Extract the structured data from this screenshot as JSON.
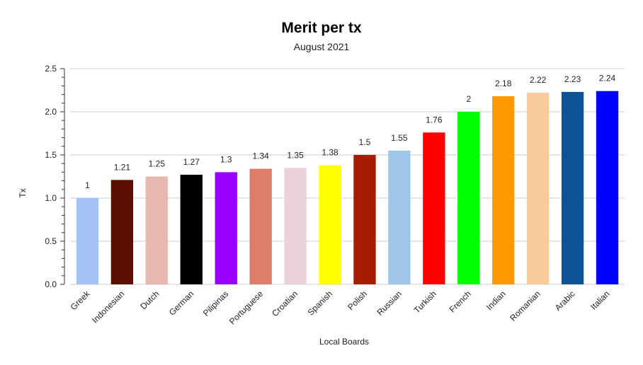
{
  "chart_data": {
    "type": "bar",
    "title": "Merit per tx",
    "subtitle": "August 2021",
    "xlabel": "Local Boards",
    "ylabel": "Tx",
    "ylim": [
      0,
      2.5
    ],
    "yticks": [
      "0.0",
      "0.5",
      "1.0",
      "1.5",
      "2.0",
      "2.5"
    ],
    "ytick_values": [
      0,
      0.5,
      1.0,
      1.5,
      2.0,
      2.5
    ],
    "grid": true,
    "legend": "none",
    "categories": [
      "Greek",
      "Indonesian",
      "Dutch",
      "German",
      "Pilipinas",
      "Portuguese",
      "Croatian",
      "Spanish",
      "Polish",
      "Russian",
      "Turkish",
      "French",
      "Indian",
      "Romanian",
      "Arabic",
      "Italian"
    ],
    "values": [
      1,
      1.21,
      1.25,
      1.27,
      1.3,
      1.34,
      1.35,
      1.38,
      1.5,
      1.55,
      1.76,
      2,
      2.18,
      2.22,
      2.23,
      2.24
    ],
    "value_labels": [
      "1",
      "1.21",
      "1.25",
      "1.27",
      "1.3",
      "1.34",
      "1.35",
      "1.38",
      "1.5",
      "1.55",
      "1.76",
      "2",
      "2.18",
      "2.22",
      "2.23",
      "2.24"
    ],
    "colors": [
      "#a4c2f4",
      "#5b0f00",
      "#e6b8af",
      "#000000",
      "#9900ff",
      "#dd7e6b",
      "#ead1dc",
      "#ffff00",
      "#a61c00",
      "#9fc5e8",
      "#ff0000",
      "#00ff00",
      "#ff9900",
      "#f9cb9c",
      "#0b5394",
      "#0000ff"
    ]
  }
}
